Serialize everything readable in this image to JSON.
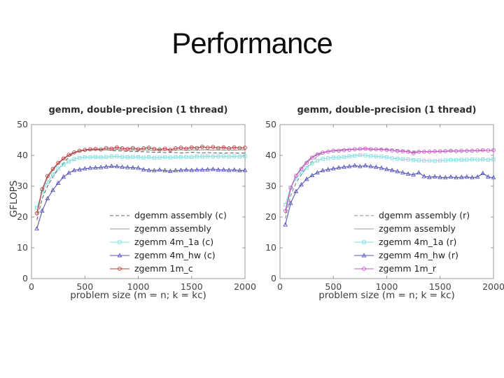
{
  "slide": {
    "title": "Performance"
  },
  "colors": {
    "axis": "#999999",
    "tick_text": "#444444",
    "title_text": "#2e2e2e",
    "dashed_left": "#666666",
    "dashed_right": "#888888",
    "gray_solid": "#9a9a9a",
    "cyan": "#7fdede",
    "blue": "#5555bb",
    "red": "#bb3939",
    "magenta": "#cc55cc"
  },
  "chart_data": [
    {
      "type": "line",
      "title": "gemm, double-precision (1 thread)",
      "xlabel": "problem size (m = n; k = kc)",
      "ylabel": "GFLOPS",
      "xlim": [
        0,
        2000
      ],
      "ylim": [
        0,
        50
      ],
      "xticks": [
        0,
        500,
        1000,
        1500,
        2000
      ],
      "yticks": [
        0,
        10,
        20,
        30,
        40,
        50
      ],
      "legend_position": "inside-lower-right",
      "grid": false,
      "x": [
        50,
        100,
        150,
        200,
        250,
        300,
        350,
        400,
        450,
        500,
        550,
        600,
        650,
        700,
        750,
        800,
        850,
        900,
        950,
        1000,
        1050,
        1100,
        1150,
        1200,
        1250,
        1300,
        1350,
        1400,
        1450,
        1500,
        1550,
        1600,
        1650,
        1700,
        1750,
        1800,
        1850,
        1900,
        1950,
        2000
      ],
      "series": [
        {
          "name": "dgemm assembly (c)",
          "color": "#666666",
          "dash": "5 3",
          "marker": "none",
          "values": [
            19.0,
            26.0,
            30.0,
            33.0,
            35.5,
            37.5,
            39.5,
            40.8,
            41.4,
            41.8,
            42.0,
            42.0,
            41.9,
            41.8,
            41.6,
            41.5,
            41.4,
            41.3,
            41.3,
            41.2,
            41.2,
            41.1,
            41.0,
            41.0,
            40.9,
            41.0,
            40.9,
            40.8,
            40.9,
            41.0,
            40.9,
            40.8,
            40.9,
            40.8,
            40.8,
            40.7,
            40.8,
            40.8,
            40.7,
            40.8
          ]
        },
        {
          "name": "zgemm assembly",
          "color": "#9a9a9a",
          "dash": "",
          "marker": "none",
          "values": [
            20.5,
            28.5,
            32.8,
            35.2,
            37.2,
            38.8,
            40.0,
            40.8,
            41.3,
            41.6,
            41.7,
            41.8,
            41.7,
            41.8,
            41.8,
            41.9,
            41.8,
            41.7,
            41.8,
            41.7,
            41.8,
            41.7,
            41.6,
            41.7,
            41.6,
            41.7,
            41.7,
            41.8,
            41.7,
            41.8,
            41.7,
            41.8,
            41.8,
            41.7,
            41.8,
            41.7,
            41.8,
            41.7,
            41.8,
            41.8
          ]
        },
        {
          "name": "zgemm 4m_1a (c)",
          "color": "#7fdede",
          "dash": "",
          "marker": "square",
          "values": [
            23.0,
            28.0,
            31.3,
            33.8,
            35.7,
            37.0,
            38.0,
            38.8,
            39.2,
            39.4,
            39.4,
            39.5,
            39.4,
            39.5,
            39.6,
            39.7,
            39.5,
            39.4,
            39.5,
            39.4,
            39.3,
            39.4,
            39.2,
            39.3,
            39.4,
            39.3,
            39.5,
            39.4,
            39.5,
            39.5,
            39.6,
            39.6,
            39.7,
            39.6,
            39.7,
            39.7,
            39.6,
            39.7,
            39.6,
            39.7
          ]
        },
        {
          "name": "zgemm 4m_hw (c)",
          "color": "#5555bb",
          "dash": "",
          "marker": "triangle",
          "values": [
            16.2,
            22.0,
            26.0,
            28.7,
            31.0,
            33.0,
            34.3,
            35.2,
            35.4,
            35.7,
            35.9,
            36.0,
            36.1,
            36.3,
            36.5,
            36.4,
            36.2,
            36.1,
            36.0,
            35.9,
            35.4,
            35.2,
            35.1,
            35.3,
            35.1,
            34.9,
            35.1,
            35.2,
            35.3,
            35.2,
            35.3,
            35.3,
            35.4,
            35.5,
            35.3,
            35.3,
            35.2,
            35.3,
            35.1,
            35.2
          ]
        },
        {
          "name": "zgemm 1m_c",
          "color": "#bb3939",
          "dash": "",
          "marker": "circle",
          "values": [
            21.2,
            29.0,
            33.3,
            35.6,
            37.6,
            39.0,
            40.2,
            41.0,
            41.5,
            41.8,
            42.0,
            42.1,
            41.9,
            42.4,
            42.2,
            42.6,
            42.3,
            42.1,
            42.4,
            42.0,
            42.3,
            42.5,
            42.1,
            41.9,
            42.2,
            41.8,
            42.3,
            42.5,
            42.2,
            42.6,
            42.4,
            42.8,
            42.5,
            42.7,
            42.4,
            42.6,
            42.3,
            42.6,
            42.4,
            42.5
          ]
        }
      ]
    },
    {
      "type": "line",
      "title": "gemm, double-precision (1 thread)",
      "xlabel": "problem size (m = n; k = kc)",
      "ylabel": "",
      "xlim": [
        0,
        2000
      ],
      "ylim": [
        0,
        50
      ],
      "xticks": [
        0,
        500,
        1000,
        1500,
        2000
      ],
      "yticks": [
        0,
        10,
        20,
        30,
        40,
        50
      ],
      "legend_position": "inside-lower-right",
      "grid": false,
      "x": [
        50,
        100,
        150,
        200,
        250,
        300,
        350,
        400,
        450,
        500,
        550,
        600,
        650,
        700,
        750,
        800,
        850,
        900,
        950,
        1000,
        1050,
        1100,
        1150,
        1200,
        1250,
        1300,
        1350,
        1400,
        1450,
        1500,
        1550,
        1600,
        1650,
        1700,
        1750,
        1800,
        1850,
        1900,
        1950,
        2000
      ],
      "series": [
        {
          "name": "dgemm assembly (r)",
          "color": "#888888",
          "dash": "5 3",
          "marker": "none",
          "values": [
            19.5,
            27.0,
            31.0,
            33.8,
            36.0,
            38.0,
            39.8,
            40.8,
            41.3,
            41.6,
            41.8,
            41.9,
            42.0,
            42.0,
            42.1,
            42.1,
            42.1,
            42.0,
            42.1,
            42.0,
            42.0,
            41.9,
            41.8,
            41.6,
            41.4,
            41.3,
            41.2,
            41.2,
            41.3,
            41.2,
            41.3,
            41.4,
            41.4,
            41.5,
            41.4,
            41.5,
            41.5,
            41.6,
            41.6,
            41.6
          ]
        },
        {
          "name": "zgemm assembly",
          "color": "#9a9a9a",
          "dash": "",
          "marker": "none",
          "values": [
            21.0,
            29.0,
            33.5,
            36.0,
            38.0,
            39.5,
            40.5,
            41.0,
            41.3,
            41.5,
            41.6,
            41.8,
            41.9,
            42.0,
            42.0,
            42.1,
            42.0,
            41.9,
            41.9,
            41.8,
            41.6,
            41.5,
            41.4,
            41.2,
            41.0,
            41.2,
            41.2,
            41.2,
            41.2,
            41.3,
            41.3,
            41.4,
            41.4,
            41.4,
            41.5,
            41.5,
            41.5,
            41.6,
            41.6,
            41.6
          ]
        },
        {
          "name": "zgemm 4m_1a (r)",
          "color": "#7fdede",
          "dash": "",
          "marker": "square",
          "values": [
            24.0,
            29.5,
            32.5,
            34.5,
            36.0,
            37.4,
            38.3,
            38.9,
            39.1,
            39.3,
            39.3,
            39.5,
            39.7,
            39.9,
            40.1,
            40.0,
            39.8,
            39.7,
            39.6,
            39.4,
            39.1,
            38.9,
            38.8,
            38.7,
            38.5,
            38.4,
            38.3,
            38.3,
            38.2,
            38.3,
            38.4,
            38.5,
            38.5,
            38.6,
            38.6,
            38.7,
            38.6,
            38.7,
            38.6,
            38.7
          ]
        },
        {
          "name": "zgemm 4m_hw (r)",
          "color": "#5555bb",
          "dash": "",
          "marker": "triangle",
          "values": [
            17.5,
            24.5,
            28.3,
            30.5,
            32.3,
            33.5,
            34.4,
            35.1,
            35.4,
            35.7,
            36.0,
            36.2,
            36.4,
            36.7,
            36.4,
            36.7,
            36.4,
            36.2,
            35.9,
            35.5,
            35.2,
            34.8,
            34.4,
            34.0,
            33.7,
            34.4,
            33.2,
            32.9,
            33.1,
            32.9,
            32.8,
            33.0,
            32.8,
            32.9,
            33.0,
            32.8,
            33.0,
            34.2,
            33.0,
            32.8
          ]
        },
        {
          "name": "zgemm 1m_r",
          "color": "#cc55cc",
          "dash": "",
          "marker": "circle",
          "values": [
            22.0,
            29.5,
            33.4,
            35.6,
            37.6,
            39.3,
            40.3,
            40.9,
            41.2,
            41.5,
            41.5,
            41.7,
            41.8,
            42.0,
            42.1,
            42.2,
            42.0,
            42.0,
            41.9,
            41.8,
            41.6,
            41.4,
            41.3,
            41.2,
            40.7,
            41.2,
            41.2,
            41.2,
            41.3,
            41.3,
            41.4,
            41.5,
            41.4,
            41.5,
            41.5,
            41.5,
            41.6,
            41.7,
            41.6,
            41.7
          ]
        }
      ]
    }
  ]
}
